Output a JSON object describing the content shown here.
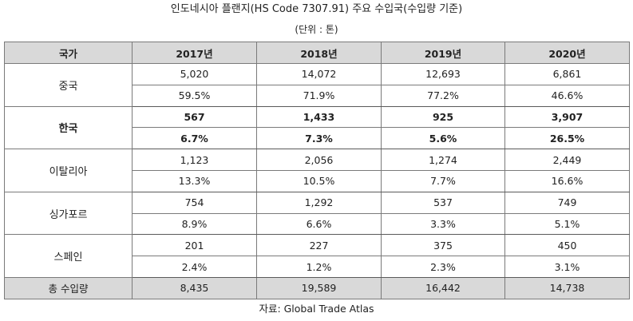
{
  "title": "인도네시아 플랜지(HS Code 7307.91) 주요 수입국(수입량 기준)",
  "unit": "(단위 : 톤)",
  "table": {
    "headers": [
      "국가",
      "2017년",
      "2018년",
      "2019년",
      "2020년"
    ],
    "rows": [
      {
        "country": "중국",
        "values": [
          "5,020",
          "14,072",
          "12,693",
          "6,861"
        ],
        "shares": [
          "59.5%",
          "71.9%",
          "77.2%",
          "46.6%"
        ]
      },
      {
        "country": "한국",
        "values": [
          "567",
          "1,433",
          "925",
          "3,907"
        ],
        "shares": [
          "6.7%",
          "7.3%",
          "5.6%",
          "26.5%"
        ]
      },
      {
        "country": "이탈리아",
        "values": [
          "1,123",
          "2,056",
          "1,274",
          "2,449"
        ],
        "shares": [
          "13.3%",
          "10.5%",
          "7.7%",
          "16.6%"
        ]
      },
      {
        "country": "싱가포르",
        "values": [
          "754",
          "1,292",
          "537",
          "749"
        ],
        "shares": [
          "8.9%",
          "6.6%",
          "3.3%",
          "5.1%"
        ]
      },
      {
        "country": "스페인",
        "values": [
          "201",
          "227",
          "375",
          "450"
        ],
        "shares": [
          "2.4%",
          "1.2%",
          "2.3%",
          "3.1%"
        ]
      }
    ],
    "total": {
      "label": "총 수입량",
      "values": [
        "8,435",
        "19,589",
        "16,442",
        "14,738"
      ]
    }
  },
  "source": "자료: Global Trade Atlas"
}
